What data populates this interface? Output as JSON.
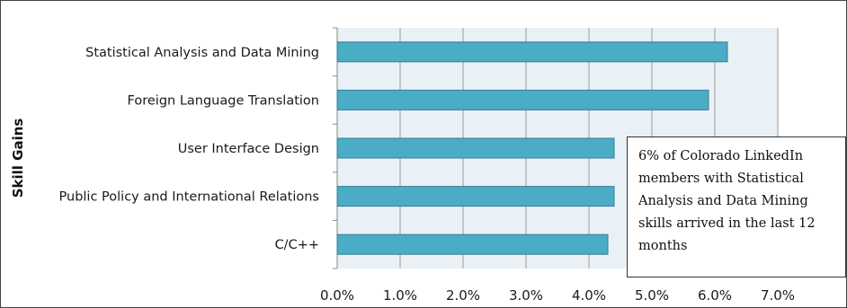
{
  "chart_data": {
    "type": "bar",
    "orientation": "horizontal",
    "categories": [
      "Statistical Analysis and Data Mining",
      "Foreign Language Translation",
      "User Interface Design",
      "Public Policy and International Relations",
      "C/C++"
    ],
    "values": [
      0.062,
      0.059,
      0.044,
      0.044,
      0.043
    ],
    "ylabel": "Skill Gains",
    "xlabel": "",
    "xlim": [
      0,
      0.07
    ],
    "xticks": [
      0,
      0.01,
      0.02,
      0.03,
      0.04,
      0.05,
      0.06,
      0.07
    ],
    "xtick_labels": [
      "0.0%",
      "1.0%",
      "2.0%",
      "3.0%",
      "4.0%",
      "5.0%",
      "6.0%",
      "7.0%"
    ],
    "grid": "vertical",
    "bar_color": "#4bacc6",
    "bar_edge_color": "#357f94",
    "plot_background": "#e9f1f6",
    "annotation": "6% of Colorado LinkedIn members with Statistical Analysis and Data Mining skills arrived in the last 12 months"
  }
}
